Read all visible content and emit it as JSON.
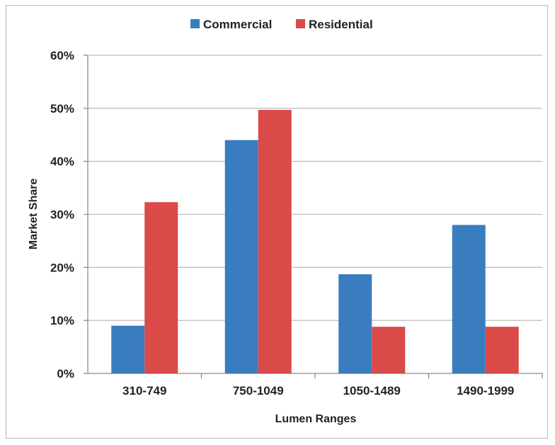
{
  "chart_data": {
    "type": "bar",
    "title": "",
    "xlabel": "Lumen Ranges",
    "ylabel": "Market Share",
    "categories": [
      "310-749",
      "750-1049",
      "1050-1489",
      "1490-1999"
    ],
    "series": [
      {
        "name": "Commercial",
        "color": "#3a7dbf",
        "values": [
          9,
          44,
          18.7,
          28
        ]
      },
      {
        "name": "Residential",
        "color": "#d94a48",
        "values": [
          32.3,
          49.7,
          8.8,
          8.8
        ]
      }
    ],
    "ylim": [
      0,
      60
    ],
    "yticks": [
      0,
      10,
      20,
      30,
      40,
      50,
      60
    ],
    "ytick_labels": [
      "0%",
      "10%",
      "20%",
      "30%",
      "40%",
      "50%",
      "60%"
    ],
    "grid": true,
    "legend_position": "top"
  }
}
